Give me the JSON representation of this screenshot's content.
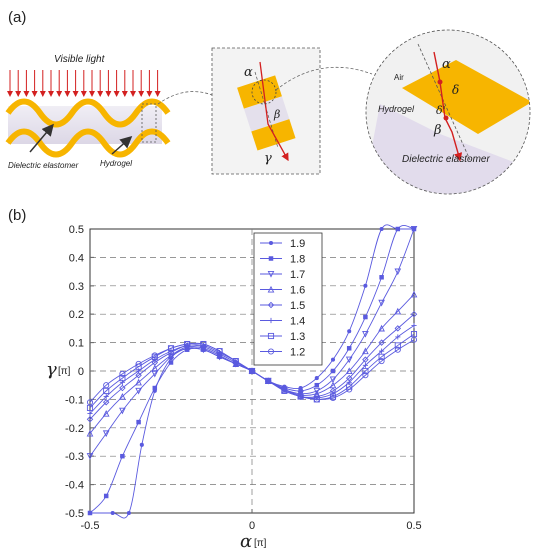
{
  "figure": {
    "panel_a": {
      "label": "(a)",
      "light_label": "Visible light",
      "elastomer_label": "Dielectric elastomer",
      "hydrogel_label": "Hydrogel",
      "zoom_alpha": "α",
      "zoom_beta": "β",
      "zoom_gamma": "γ",
      "detail": {
        "air": "Air",
        "hydrogel": "Hydrogel",
        "elastomer": "Dielectric elastomer",
        "alpha": "α",
        "delta": "δ",
        "delta_prime": "δ'",
        "beta": "β"
      }
    },
    "panel_b": {
      "label": "(b)"
    },
    "colors": {
      "gold": "#f7b500",
      "purple_band": "#e6e2ee",
      "arrow_red": "#d32020",
      "series_blue": "#5a5adf"
    }
  },
  "chart_data": {
    "type": "line",
    "xlabel": "α",
    "xlabel_unit": "[π]",
    "ylabel": "γ",
    "ylabel_unit": "[π]",
    "xlim": [
      -0.5,
      0.5
    ],
    "ylim": [
      -0.5,
      0.5
    ],
    "x_ticks": [
      "-0.5",
      "0",
      "0.5"
    ],
    "y_ticks": [
      "0.5",
      "0.4",
      "0.3",
      "0.2",
      "0.1",
      "0",
      "-0.1",
      "-0.2",
      "-0.3",
      "-0.4",
      "-0.5"
    ],
    "grid": "dashed",
    "legend_position": "top-center",
    "series": [
      {
        "name": "1.9",
        "marker": "dot",
        "x": [
          -0.5,
          -0.43,
          -0.38,
          -0.34,
          -0.3,
          -0.25,
          -0.2,
          -0.15,
          -0.1,
          -0.05,
          0,
          0.05,
          0.1,
          0.15,
          0.2,
          0.25,
          0.3,
          0.35,
          0.4,
          0.45,
          0.5
        ],
        "y": [
          -0.5,
          -0.5,
          -0.5,
          -0.26,
          -0.07,
          0.045,
          0.08,
          0.075,
          0.05,
          0.025,
          0,
          -0.035,
          -0.055,
          -0.06,
          -0.025,
          0.04,
          0.14,
          0.3,
          0.5,
          0.5,
          0.5
        ]
      },
      {
        "name": "1.8",
        "marker": "square-f",
        "x": [
          -0.5,
          -0.45,
          -0.4,
          -0.35,
          -0.3,
          -0.25,
          -0.2,
          -0.15,
          -0.1,
          -0.05,
          0,
          0.05,
          0.1,
          0.15,
          0.2,
          0.25,
          0.3,
          0.35,
          0.4,
          0.45,
          0.5
        ],
        "y": [
          -0.5,
          -0.44,
          -0.3,
          -0.18,
          -0.06,
          0.03,
          0.075,
          0.075,
          0.05,
          0.025,
          0,
          -0.035,
          -0.06,
          -0.07,
          -0.05,
          0.0,
          0.08,
          0.19,
          0.33,
          0.5,
          0.5
        ]
      },
      {
        "name": "1.7",
        "marker": "tri-down",
        "x": [
          -0.5,
          -0.45,
          -0.4,
          -0.35,
          -0.3,
          -0.25,
          -0.2,
          -0.15,
          -0.1,
          -0.05,
          0,
          0.05,
          0.1,
          0.15,
          0.2,
          0.25,
          0.3,
          0.35,
          0.4,
          0.45,
          0.5
        ],
        "y": [
          -0.3,
          -0.22,
          -0.14,
          -0.07,
          -0.01,
          0.05,
          0.08,
          0.075,
          0.05,
          0.025,
          0,
          -0.035,
          -0.065,
          -0.08,
          -0.07,
          -0.03,
          0.04,
          0.13,
          0.24,
          0.35,
          0.5
        ]
      },
      {
        "name": "1.6",
        "marker": "tri-up",
        "x": [
          -0.5,
          -0.45,
          -0.4,
          -0.35,
          -0.3,
          -0.25,
          -0.2,
          -0.15,
          -0.1,
          -0.05,
          0,
          0.05,
          0.1,
          0.15,
          0.2,
          0.25,
          0.3,
          0.35,
          0.4,
          0.45,
          0.5
        ],
        "y": [
          -0.22,
          -0.15,
          -0.09,
          -0.04,
          0.01,
          0.055,
          0.085,
          0.08,
          0.055,
          0.025,
          0,
          -0.035,
          -0.065,
          -0.085,
          -0.08,
          -0.05,
          0.0,
          0.07,
          0.15,
          0.21,
          0.27
        ]
      },
      {
        "name": "1.5",
        "marker": "diamond",
        "x": [
          -0.5,
          -0.45,
          -0.4,
          -0.35,
          -0.3,
          -0.25,
          -0.2,
          -0.15,
          -0.1,
          -0.05,
          0,
          0.05,
          0.1,
          0.15,
          0.2,
          0.25,
          0.3,
          0.35,
          0.4,
          0.45,
          0.5
        ],
        "y": [
          -0.17,
          -0.11,
          -0.06,
          -0.015,
          0.03,
          0.065,
          0.09,
          0.085,
          0.06,
          0.03,
          0,
          -0.035,
          -0.065,
          -0.09,
          -0.09,
          -0.07,
          -0.025,
          0.04,
          0.1,
          0.15,
          0.2
        ]
      },
      {
        "name": "1.4",
        "marker": "plus",
        "x": [
          -0.5,
          -0.45,
          -0.4,
          -0.35,
          -0.3,
          -0.25,
          -0.2,
          -0.15,
          -0.1,
          -0.05,
          0,
          0.05,
          0.1,
          0.15,
          0.2,
          0.25,
          0.3,
          0.35,
          0.4,
          0.45,
          0.5
        ],
        "y": [
          -0.15,
          -0.09,
          -0.04,
          0.0,
          0.04,
          0.07,
          0.09,
          0.09,
          0.065,
          0.035,
          0,
          -0.035,
          -0.065,
          -0.09,
          -0.095,
          -0.08,
          -0.04,
          0.02,
          0.07,
          0.12,
          0.16
        ]
      },
      {
        "name": "1.3",
        "marker": "square",
        "x": [
          -0.5,
          -0.45,
          -0.4,
          -0.35,
          -0.3,
          -0.25,
          -0.2,
          -0.15,
          -0.1,
          -0.05,
          0,
          0.05,
          0.1,
          0.15,
          0.2,
          0.25,
          0.3,
          0.35,
          0.4,
          0.45,
          0.5
        ],
        "y": [
          -0.13,
          -0.07,
          -0.025,
          0.015,
          0.05,
          0.08,
          0.095,
          0.095,
          0.07,
          0.035,
          0,
          -0.035,
          -0.07,
          -0.09,
          -0.1,
          -0.09,
          -0.055,
          0.0,
          0.05,
          0.09,
          0.13
        ]
      },
      {
        "name": "1.2",
        "marker": "circle",
        "x": [
          -0.5,
          -0.45,
          -0.4,
          -0.35,
          -0.3,
          -0.25,
          -0.2,
          -0.15,
          -0.1,
          -0.05,
          0,
          0.05,
          0.1,
          0.15,
          0.2,
          0.25,
          0.3,
          0.35,
          0.4,
          0.45,
          0.5
        ],
        "y": [
          -0.11,
          -0.05,
          -0.01,
          0.025,
          0.055,
          0.08,
          0.095,
          0.095,
          0.07,
          0.035,
          0,
          -0.035,
          -0.07,
          -0.09,
          -0.1,
          -0.095,
          -0.065,
          -0.015,
          0.035,
          0.075,
          0.11
        ]
      }
    ]
  }
}
